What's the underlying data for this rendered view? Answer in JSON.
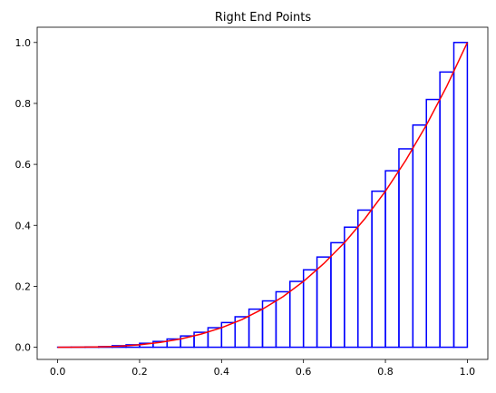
{
  "chart_data": {
    "type": "bar",
    "title": "Right End Points",
    "xlabel": "",
    "ylabel": "",
    "xlim": [
      -0.05,
      1.05
    ],
    "ylim": [
      -0.04,
      1.05
    ],
    "grid": false,
    "x_ticks": [
      "0.0",
      "0.2",
      "0.4",
      "0.6",
      "0.8",
      "1.0"
    ],
    "y_ticks": [
      "0.0",
      "0.2",
      "0.4",
      "0.6",
      "0.8",
      "1.0"
    ],
    "bar_edges": [
      0.0,
      0.033,
      0.067,
      0.1,
      0.133,
      0.167,
      0.2,
      0.233,
      0.267,
      0.3,
      0.333,
      0.367,
      0.4,
      0.433,
      0.467,
      0.5,
      0.533,
      0.567,
      0.6,
      0.633,
      0.667,
      0.7,
      0.733,
      0.767,
      0.8,
      0.833,
      0.867,
      0.9,
      0.933,
      0.967,
      1.0
    ],
    "bar_heights": [
      4e-05,
      0.0003,
      0.001,
      0.002,
      0.005,
      0.008,
      0.013,
      0.019,
      0.027,
      0.037,
      0.049,
      0.064,
      0.081,
      0.1,
      0.125,
      0.152,
      0.182,
      0.216,
      0.254,
      0.296,
      0.343,
      0.394,
      0.45,
      0.512,
      0.579,
      0.651,
      0.729,
      0.813,
      0.903,
      1.0
    ],
    "bar_color": "#0000ff",
    "curve": {
      "x": [
        0.0,
        0.05,
        0.1,
        0.15,
        0.2,
        0.25,
        0.3,
        0.35,
        0.4,
        0.45,
        0.5,
        0.55,
        0.6,
        0.65,
        0.7,
        0.75,
        0.8,
        0.85,
        0.9,
        0.95,
        1.0
      ],
      "y": [
        0.0,
        0.0001,
        0.001,
        0.003,
        0.008,
        0.016,
        0.027,
        0.043,
        0.064,
        0.091,
        0.125,
        0.166,
        0.216,
        0.275,
        0.343,
        0.422,
        0.512,
        0.614,
        0.729,
        0.857,
        1.0
      ],
      "color": "#ff0000"
    }
  }
}
